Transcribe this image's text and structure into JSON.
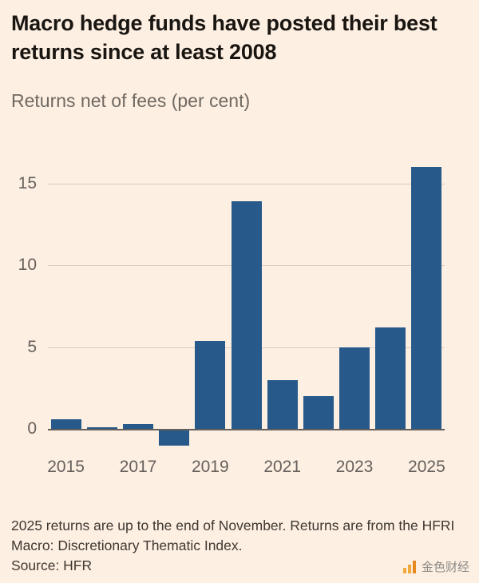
{
  "page": {
    "background": "#FDEFE2"
  },
  "chart_data": {
    "type": "bar",
    "title": "Macro hedge funds have posted their best returns since at least 2008",
    "subtitle": "Returns net of fees (per cent)",
    "categories": [
      "2015",
      "2016",
      "2017",
      "2018",
      "2019",
      "2020",
      "2021",
      "2022",
      "2023",
      "2024",
      "2025"
    ],
    "values": [
      0.6,
      0.1,
      0.3,
      -1.0,
      5.4,
      13.9,
      3.0,
      2.0,
      5.0,
      6.2,
      16.0
    ],
    "yticks": [
      0,
      5,
      10,
      15
    ],
    "xtick_labels": [
      "2015",
      "2017",
      "2019",
      "2021",
      "2023",
      "2025"
    ],
    "ylim": [
      -1.1,
      16.7
    ],
    "grid": true,
    "legend_position": "none",
    "bar_color": "#27598A",
    "gridline_color": "#D8CEC1",
    "zero_line_color": "#66605C",
    "axis_label_color": "#66605C"
  },
  "footer": {
    "note": "2025 returns are up to the end of November. Returns are from the HFRI Macro: Discretionary Thematic Index.",
    "source": "Source: HFR",
    "logo_text": "金色财经"
  }
}
